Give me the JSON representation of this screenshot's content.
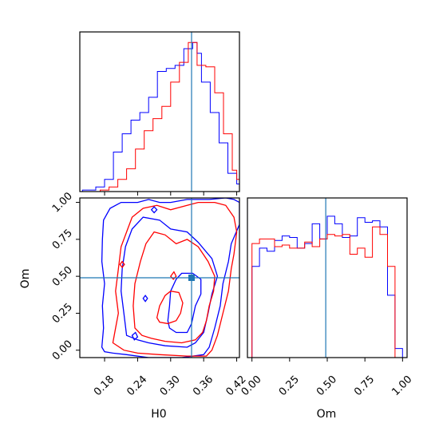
{
  "chart_data": {
    "type": "corner",
    "parameters": [
      "H0",
      "Om"
    ],
    "truth": {
      "H0": 0.338,
      "Om": 0.49
    },
    "colors": {
      "series_a": "#0000ff",
      "series_b": "#ff0000",
      "truth": "#1f77b4"
    },
    "panels": [
      {
        "id": "hist-h0",
        "type": "histogram",
        "xlim": [
          0.135,
          0.425
        ],
        "xticks": [
          0.18,
          0.24,
          0.3,
          0.36,
          0.42
        ],
        "tick_labels_visible": false,
        "ylim": [
          0,
          1.05
        ],
        "bin_edges": [
          0.14,
          0.148,
          0.156,
          0.164,
          0.172,
          0.18,
          0.188,
          0.196,
          0.204,
          0.212,
          0.22,
          0.228,
          0.236,
          0.244,
          0.252,
          0.26,
          0.268,
          0.276,
          0.284,
          0.292,
          0.3,
          0.308,
          0.316,
          0.324,
          0.332,
          0.34,
          0.348,
          0.356,
          0.364,
          0.372,
          0.38,
          0.388,
          0.396,
          0.404,
          0.412,
          0.42,
          0.425
        ],
        "series": [
          {
            "color": "blue",
            "values": [
              0.01,
              0.01,
              0.01,
              0.03,
              0.03,
              0.08,
              0.08,
              0.26,
              0.26,
              0.38,
              0.38,
              0.47,
              0.47,
              0.52,
              0.52,
              0.62,
              0.62,
              0.79,
              0.79,
              0.81,
              0.81,
              0.83,
              0.83,
              0.94,
              0.94,
              0.98,
              0.91,
              0.72,
              0.72,
              0.52,
              0.52,
              0.32,
              0.32,
              0.12,
              0.12,
              0.05
            ]
          },
          {
            "color": "red",
            "values": [
              0.0,
              0.0,
              0.0,
              0.0,
              0.01,
              0.01,
              0.03,
              0.03,
              0.08,
              0.08,
              0.15,
              0.15,
              0.28,
              0.28,
              0.4,
              0.4,
              0.48,
              0.48,
              0.56,
              0.56,
              0.72,
              0.72,
              0.85,
              0.85,
              0.98,
              0.98,
              0.83,
              0.83,
              0.82,
              0.82,
              0.65,
              0.65,
              0.38,
              0.38,
              0.14,
              0.08
            ]
          }
        ]
      },
      {
        "id": "hist-om",
        "type": "histogram",
        "xlim": [
          -0.03,
          1.03
        ],
        "xticks": [
          0.0,
          0.25,
          0.5,
          0.75,
          1.0
        ],
        "tick_labels": [
          "0.00",
          "0.25",
          "0.50",
          "0.75",
          "1.00"
        ],
        "ylim": [
          0,
          1.05
        ],
        "bin_edges": [
          0.0,
          0.05,
          0.1,
          0.15,
          0.2,
          0.25,
          0.3,
          0.35,
          0.4,
          0.45,
          0.5,
          0.55,
          0.6,
          0.65,
          0.7,
          0.75,
          0.8,
          0.85,
          0.9,
          0.95,
          1.0
        ],
        "series": [
          {
            "color": "blue",
            "values": [
              0.6,
              0.72,
              0.7,
              0.77,
              0.8,
              0.79,
              0.72,
              0.75,
              0.88,
              0.78,
              0.93,
              0.88,
              0.79,
              0.8,
              0.92,
              0.89,
              0.9,
              0.86,
              0.41,
              0.06
            ]
          },
          {
            "color": "red",
            "values": [
              0.75,
              0.78,
              0.78,
              0.73,
              0.74,
              0.72,
              0.72,
              0.76,
              0.73,
              0.78,
              0.81,
              0.8,
              0.81,
              0.68,
              0.72,
              0.66,
              0.86,
              0.81,
              0.6,
              0.0
            ]
          }
        ]
      },
      {
        "id": "contour",
        "type": "contour",
        "xlabel": "H0",
        "ylabel": "Om",
        "xlim": [
          0.135,
          0.425
        ],
        "ylim": [
          -0.05,
          1.03
        ],
        "xticks": [
          0.18,
          0.24,
          0.3,
          0.36,
          0.42
        ],
        "xtick_labels": [
          "0.18",
          "0.24",
          "0.30",
          "0.36",
          "0.42"
        ],
        "yticks": [
          0.0,
          0.25,
          0.5,
          0.75,
          1.0
        ],
        "ytick_labels": [
          "0.00",
          "0.25",
          "0.50",
          "0.75",
          "1.00"
        ],
        "series": [
          {
            "color": "blue",
            "contours": [
              [
                [
                  0.175,
                  0.02
                ],
                [
                  0.178,
                  0.15
                ],
                [
                  0.176,
                  0.3
                ],
                [
                  0.18,
                  0.45
                ],
                [
                  0.175,
                  0.6
                ],
                [
                  0.176,
                  0.75
                ],
                [
                  0.178,
                  0.88
                ],
                [
                  0.19,
                  0.96
                ],
                [
                  0.21,
                  1.0
                ],
                [
                  0.24,
                  1.0
                ],
                [
                  0.26,
                  1.02
                ],
                [
                  0.28,
                  1.0
                ],
                [
                  0.3,
                  1.0
                ],
                [
                  0.33,
                  1.02
                ],
                [
                  0.37,
                  1.02
                ],
                [
                  0.4,
                  1.03
                ],
                [
                  0.415,
                  1.02
                ],
                [
                  0.425,
                  1.0
                ],
                [
                  0.425,
                  0.85
                ],
                [
                  0.41,
                  0.72
                ],
                [
                  0.405,
                  0.6
                ],
                [
                  0.395,
                  0.45
                ],
                [
                  0.39,
                  0.3
                ],
                [
                  0.38,
                  0.15
                ],
                [
                  0.37,
                  0.02
                ],
                [
                  0.36,
                  -0.03
                ],
                [
                  0.32,
                  -0.05
                ],
                [
                  0.3,
                  -0.05
                ],
                [
                  0.26,
                  -0.05
                ],
                [
                  0.22,
                  -0.03
                ],
                [
                  0.195,
                  -0.02
                ],
                [
                  0.18,
                  -0.01
                ],
                [
                  0.175,
                  0.02
                ]
              ],
              [
                [
                  0.22,
                  0.1
                ],
                [
                  0.215,
                  0.25
                ],
                [
                  0.21,
                  0.4
                ],
                [
                  0.212,
                  0.55
                ],
                [
                  0.218,
                  0.7
                ],
                [
                  0.23,
                  0.82
                ],
                [
                  0.25,
                  0.9
                ],
                [
                  0.28,
                  0.88
                ],
                [
                  0.3,
                  0.82
                ],
                [
                  0.33,
                  0.8
                ],
                [
                  0.35,
                  0.73
                ],
                [
                  0.375,
                  0.62
                ],
                [
                  0.385,
                  0.5
                ],
                [
                  0.375,
                  0.38
                ],
                [
                  0.368,
                  0.25
                ],
                [
                  0.36,
                  0.12
                ],
                [
                  0.345,
                  0.05
                ],
                [
                  0.33,
                  0.02
                ],
                [
                  0.29,
                  0.03
                ],
                [
                  0.26,
                  0.05
                ],
                [
                  0.24,
                  0.07
                ],
                [
                  0.22,
                  0.1
                ]
              ],
              [
                [
                  0.295,
                  0.2
                ],
                [
                  0.298,
                  0.3
                ],
                [
                  0.3,
                  0.4
                ],
                [
                  0.31,
                  0.48
                ],
                [
                  0.32,
                  0.52
                ],
                [
                  0.34,
                  0.52
                ],
                [
                  0.355,
                  0.48
                ],
                [
                  0.355,
                  0.38
                ],
                [
                  0.345,
                  0.3
                ],
                [
                  0.338,
                  0.18
                ],
                [
                  0.33,
                  0.12
                ],
                [
                  0.31,
                  0.12
                ],
                [
                  0.298,
                  0.15
                ],
                [
                  0.295,
                  0.2
                ]
              ],
              [
                [
                  0.23,
                  0.1
                ],
                [
                  0.236,
                  0.12
                ],
                [
                  0.24,
                  0.09
                ],
                [
                  0.234,
                  0.07
                ],
                [
                  0.23,
                  0.1
                ]
              ],
              [
                [
                  0.25,
                  0.35
                ],
                [
                  0.254,
                  0.37
                ],
                [
                  0.258,
                  0.35
                ],
                [
                  0.254,
                  0.33
                ],
                [
                  0.25,
                  0.35
                ]
              ],
              [
                [
                  0.265,
                  0.95
                ],
                [
                  0.27,
                  0.97
                ],
                [
                  0.275,
                  0.95
                ],
                [
                  0.27,
                  0.93
                ],
                [
                  0.265,
                  0.95
                ]
              ]
            ]
          },
          {
            "color": "red",
            "contours": [
              [
                [
                  0.195,
                  0.05
                ],
                [
                  0.2,
                  0.15
                ],
                [
                  0.205,
                  0.25
                ],
                [
                  0.2,
                  0.4
                ],
                [
                  0.205,
                  0.55
                ],
                [
                  0.21,
                  0.7
                ],
                [
                  0.22,
                  0.8
                ],
                [
                  0.23,
                  0.9
                ],
                [
                  0.25,
                  0.96
                ],
                [
                  0.275,
                  0.98
                ],
                [
                  0.3,
                  0.95
                ],
                [
                  0.33,
                  0.98
                ],
                [
                  0.35,
                  1.0
                ],
                [
                  0.38,
                  1.0
                ],
                [
                  0.4,
                  0.98
                ],
                [
                  0.415,
                  0.9
                ],
                [
                  0.42,
                  0.8
                ],
                [
                  0.415,
                  0.65
                ],
                [
                  0.41,
                  0.55
                ],
                [
                  0.405,
                  0.4
                ],
                [
                  0.395,
                  0.25
                ],
                [
                  0.385,
                  0.1
                ],
                [
                  0.375,
                  0.0
                ],
                [
                  0.365,
                  -0.04
                ],
                [
                  0.33,
                  -0.04
                ],
                [
                  0.28,
                  -0.03
                ],
                [
                  0.24,
                  -0.02
                ],
                [
                  0.215,
                  0.0
                ],
                [
                  0.195,
                  0.05
                ]
              ],
              [
                [
                  0.235,
                  0.15
                ],
                [
                  0.232,
                  0.3
                ],
                [
                  0.235,
                  0.45
                ],
                [
                  0.245,
                  0.6
                ],
                [
                  0.255,
                  0.72
                ],
                [
                  0.27,
                  0.8
                ],
                [
                  0.29,
                  0.78
                ],
                [
                  0.31,
                  0.72
                ],
                [
                  0.33,
                  0.75
                ],
                [
                  0.35,
                  0.7
                ],
                [
                  0.368,
                  0.6
                ],
                [
                  0.38,
                  0.5
                ],
                [
                  0.378,
                  0.4
                ],
                [
                  0.37,
                  0.3
                ],
                [
                  0.365,
                  0.2
                ],
                [
                  0.358,
                  0.12
                ],
                [
                  0.345,
                  0.07
                ],
                [
                  0.32,
                  0.05
                ],
                [
                  0.29,
                  0.06
                ],
                [
                  0.265,
                  0.08
                ],
                [
                  0.248,
                  0.1
                ],
                [
                  0.235,
                  0.15
                ]
              ],
              [
                [
                  0.275,
                  0.22
                ],
                [
                  0.28,
                  0.3
                ],
                [
                  0.29,
                  0.37
                ],
                [
                  0.3,
                  0.4
                ],
                [
                  0.315,
                  0.39
                ],
                [
                  0.322,
                  0.32
                ],
                [
                  0.318,
                  0.25
                ],
                [
                  0.31,
                  0.2
                ],
                [
                  0.295,
                  0.18
                ],
                [
                  0.28,
                  0.19
                ],
                [
                  0.275,
                  0.22
                ]
              ],
              [
                [
                  0.208,
                  0.58
                ],
                [
                  0.212,
                  0.6
                ],
                [
                  0.216,
                  0.58
                ],
                [
                  0.212,
                  0.56
                ],
                [
                  0.208,
                  0.58
                ]
              ],
              [
                [
                  0.3,
                  0.5
                ],
                [
                  0.306,
                  0.53
                ],
                [
                  0.31,
                  0.5
                ],
                [
                  0.305,
                  0.48
                ],
                [
                  0.3,
                  0.5
                ]
              ]
            ]
          }
        ]
      }
    ]
  }
}
